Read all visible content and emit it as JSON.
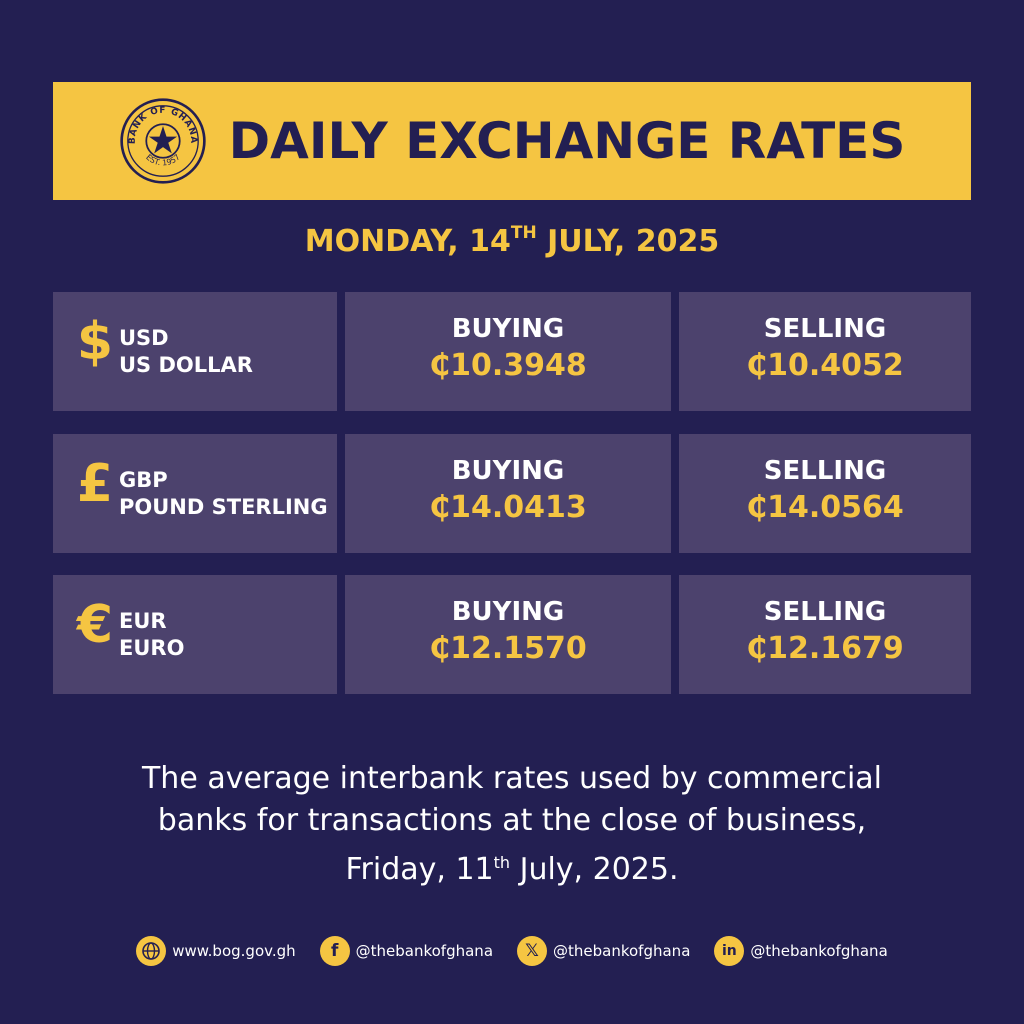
{
  "header": {
    "title": "DAILY EXCHANGE RATES",
    "seal_text_top": "BANK OF GHANA",
    "seal_text_bottom": "EST. 1957"
  },
  "date": {
    "before": "MONDAY, 14",
    "sup": "TH",
    "after": " JULY, 2025"
  },
  "rates": [
    {
      "symbol": "$",
      "code": "USD",
      "name": "US DOLLAR",
      "buying_label": "BUYING",
      "buying": "₵10.3948",
      "selling_label": "SELLING",
      "selling": "₵10.4052"
    },
    {
      "symbol": "£",
      "code": "GBP",
      "name": "POUND STERLING",
      "buying_label": "BUYING",
      "buying": "₵14.0413",
      "selling_label": "SELLING",
      "selling": "₵14.0564"
    },
    {
      "symbol": "€",
      "code": "EUR",
      "name": "EURO",
      "buying_label": "BUYING",
      "buying": "₵12.1570",
      "selling_label": "SELLING",
      "selling": "₵12.1679"
    }
  ],
  "note": {
    "line1": "The average interbank rates used by commercial",
    "line2": "banks for transactions at the close of business,",
    "line3_before": "Friday, 11",
    "line3_sup": "th",
    "line3_after": " July, 2025."
  },
  "footer": [
    {
      "icon": "globe-icon",
      "text": "www.bog.gov.gh"
    },
    {
      "icon": "facebook-icon",
      "text": "@thebankofghana"
    },
    {
      "icon": "x-icon",
      "text": "@thebankofghana"
    },
    {
      "icon": "linkedin-icon",
      "text": "@thebankofghana"
    }
  ],
  "colors": {
    "background": "#231f52",
    "accent": "#f5c542",
    "panel": "#4c426d"
  }
}
